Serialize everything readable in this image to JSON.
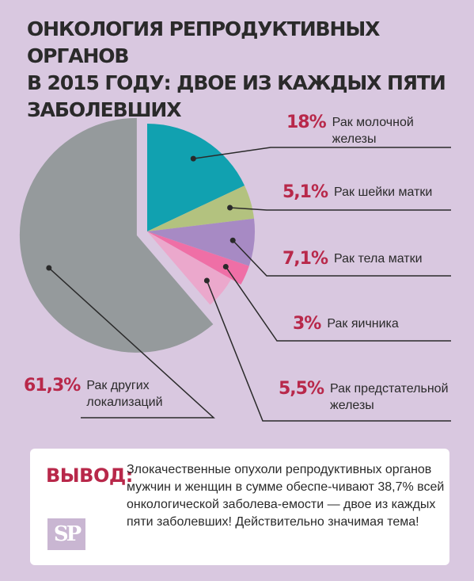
{
  "title": {
    "line1": "ОНКОЛОГИЯ РЕПРОДУКТИВНЫХ ОРГАНОВ",
    "line2": "В 2015 ГОДУ: ДВОЕ ИЗ КАЖДЫХ ПЯТИ ЗАБОЛЕВШИХ"
  },
  "chart_data": {
    "type": "pie",
    "slices": [
      {
        "pct_label": "18%",
        "value": 18.0,
        "label_lines": [
          "Рак молочной",
          "железы"
        ],
        "color": "#11a1b0"
      },
      {
        "pct_label": "5,1%",
        "value": 5.1,
        "label_lines": [
          "Рак шейки матки"
        ],
        "color": "#b3c27f"
      },
      {
        "pct_label": "7,1%",
        "value": 7.1,
        "label_lines": [
          "Рак тела матки"
        ],
        "color": "#a78ac4"
      },
      {
        "pct_label": "3%",
        "value": 3.0,
        "label_lines": [
          "Рак яичника"
        ],
        "color": "#ef6fa6"
      },
      {
        "pct_label": "5,5%",
        "value": 5.5,
        "label_lines": [
          "Рак предстательной",
          "железы"
        ],
        "color": "#eba8cc"
      },
      {
        "pct_label": "61,3%",
        "value": 61.3,
        "label_lines": [
          "Рак других",
          "локализаций"
        ],
        "color": "#959a9c"
      }
    ]
  },
  "conclusion": {
    "heading": "ВЫВОД:",
    "text": "Злокачественные опухоли репродуктивных органов мужчин и женщин в сумме обеспе-чивают 38,7% всей онкологической заболева-емости — двое из каждых пяти заболевших! Действительно значимая тема!",
    "logo_text": "SP"
  }
}
